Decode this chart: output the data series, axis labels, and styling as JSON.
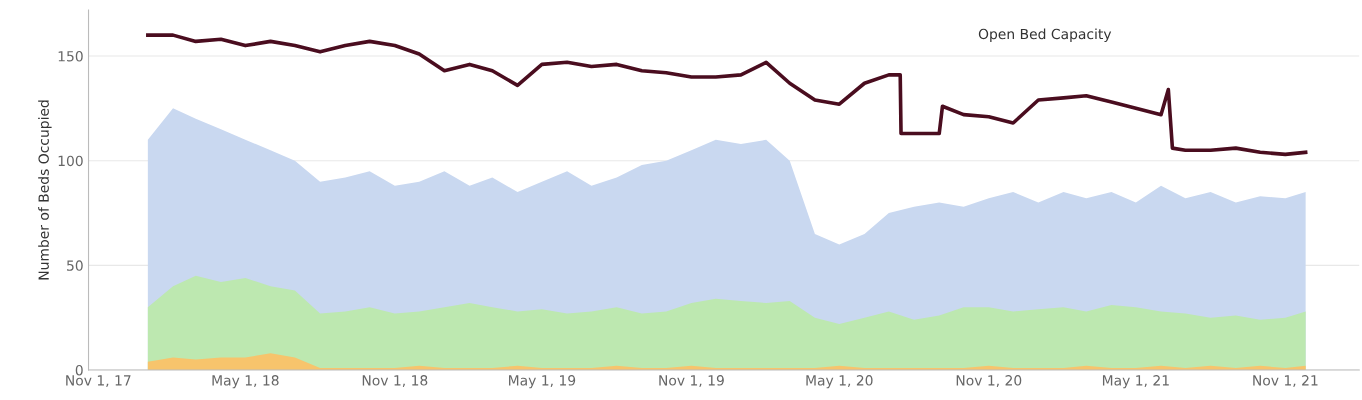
{
  "chart_data": {
    "type": "area",
    "ylabel": "Number of Beds Occupied",
    "x": [
      "2018-01-01",
      "2018-02-01",
      "2018-03-01",
      "2018-04-01",
      "2018-05-01",
      "2018-06-01",
      "2018-07-01",
      "2018-08-01",
      "2018-09-01",
      "2018-10-01",
      "2018-11-01",
      "2018-12-01",
      "2019-01-01",
      "2019-02-01",
      "2019-03-01",
      "2019-04-01",
      "2019-05-01",
      "2019-06-01",
      "2019-07-01",
      "2019-08-01",
      "2019-09-01",
      "2019-10-01",
      "2019-11-01",
      "2019-12-01",
      "2020-01-01",
      "2020-02-01",
      "2020-03-01",
      "2020-04-01",
      "2020-05-01",
      "2020-06-01",
      "2020-07-01",
      "2020-08-01",
      "2020-09-01",
      "2020-10-01",
      "2020-11-01",
      "2020-12-01",
      "2021-01-01",
      "2021-02-01",
      "2021-03-01",
      "2021-04-01",
      "2021-05-01",
      "2021-06-01",
      "2021-07-01",
      "2021-08-01",
      "2021-09-01",
      "2021-10-01",
      "2021-11-01",
      "2021-11-26"
    ],
    "series": [
      {
        "color": "#c9d8f0",
        "values": [
          110,
          125,
          120,
          115,
          110,
          105,
          100,
          90,
          92,
          95,
          88,
          90,
          95,
          88,
          92,
          85,
          90,
          95,
          88,
          92,
          98,
          100,
          105,
          110,
          108,
          110,
          100,
          65,
          60,
          65,
          75,
          78,
          80,
          78,
          82,
          85,
          80,
          85,
          82,
          85,
          80,
          88,
          82,
          85,
          80,
          83,
          82,
          85
        ]
      },
      {
        "color": "#bde8b0",
        "values": [
          30,
          40,
          45,
          42,
          44,
          40,
          38,
          27,
          28,
          30,
          27,
          28,
          30,
          32,
          30,
          28,
          29,
          27,
          28,
          30,
          27,
          28,
          32,
          34,
          33,
          32,
          33,
          25,
          22,
          25,
          28,
          24,
          26,
          30,
          30,
          28,
          29,
          30,
          28,
          31,
          30,
          28,
          27,
          25,
          26,
          24,
          25,
          28
        ]
      },
      {
        "color": "#f7c46c",
        "values": [
          4,
          6,
          5,
          6,
          6,
          8,
          6,
          1,
          1,
          1,
          1,
          2,
          1,
          1,
          1,
          2,
          1,
          1,
          1,
          2,
          1,
          1,
          2,
          1,
          1,
          1,
          1,
          1,
          2,
          1,
          1,
          1,
          1,
          1,
          2,
          1,
          1,
          1,
          2,
          1,
          1,
          2,
          1,
          2,
          1,
          2,
          1,
          2
        ]
      },
      {
        "type": "line",
        "name": "Open Bed Capacity",
        "color": "#4a0d1f",
        "x": [
          "2018-01-01",
          "2018-02-01",
          "2018-03-01",
          "2018-04-01",
          "2018-05-01",
          "2018-06-01",
          "2018-07-01",
          "2018-08-01",
          "2018-09-01",
          "2018-10-01",
          "2018-11-01",
          "2018-12-01",
          "2019-01-01",
          "2019-02-01",
          "2019-03-01",
          "2019-04-01",
          "2019-05-01",
          "2019-06-01",
          "2019-07-01",
          "2019-08-01",
          "2019-09-01",
          "2019-10-01",
          "2019-11-01",
          "2019-12-01",
          "2020-01-01",
          "2020-02-01",
          "2020-03-01",
          "2020-04-01",
          "2020-05-01",
          "2020-06-01",
          "2020-07-01",
          "2020-07-15",
          "2020-07-16",
          "2020-08-01",
          "2020-09-01",
          "2020-09-05",
          "2020-10-01",
          "2020-11-01",
          "2020-12-01",
          "2021-01-01",
          "2021-02-01",
          "2021-03-01",
          "2021-04-01",
          "2021-05-01",
          "2021-06-01",
          "2021-06-10",
          "2021-06-15",
          "2021-07-01",
          "2021-08-01",
          "2021-09-01",
          "2021-10-01",
          "2021-11-01",
          "2021-11-26"
        ],
        "values": [
          160,
          160,
          157,
          158,
          155,
          157,
          155,
          152,
          155,
          157,
          155,
          151,
          143,
          146,
          143,
          136,
          146,
          147,
          145,
          146,
          143,
          142,
          140,
          140,
          141,
          147,
          137,
          129,
          127,
          137,
          141,
          141,
          113,
          113,
          113,
          126,
          122,
          121,
          118,
          129,
          130,
          131,
          128,
          125,
          122,
          134,
          106,
          105,
          105,
          106,
          104,
          103,
          104
        ]
      }
    ],
    "xlim": [
      "2017-10-20",
      "2022-01-31"
    ],
    "xticks": [
      {
        "value": "2017-11-01",
        "label": "Nov 1, 17"
      },
      {
        "value": "2018-05-01",
        "label": "May 1, 18"
      },
      {
        "value": "2018-11-01",
        "label": "Nov 1, 18"
      },
      {
        "value": "2019-05-01",
        "label": "May 1, 19"
      },
      {
        "value": "2019-11-01",
        "label": "Nov 1, 19"
      },
      {
        "value": "2020-05-01",
        "label": "May 1, 20"
      },
      {
        "value": "2020-11-01",
        "label": "Nov 1, 20"
      },
      {
        "value": "2021-05-01",
        "label": "May 1, 21"
      },
      {
        "value": "2021-11-01",
        "label": "Nov 1, 21"
      }
    ],
    "ylim": [
      0,
      172
    ],
    "yticks": [
      0,
      50,
      100,
      150
    ],
    "grid": "y",
    "legend": false
  }
}
